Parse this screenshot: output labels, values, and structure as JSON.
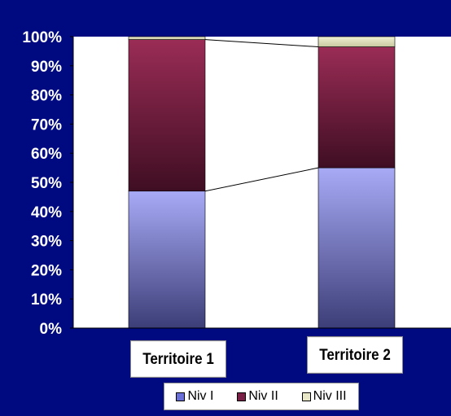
{
  "chart_data": {
    "type": "bar",
    "stacked": true,
    "percent": true,
    "categories": [
      "Territoire 1",
      "Territoire 2"
    ],
    "series": [
      {
        "name": "Niv I",
        "values": [
          47,
          55
        ],
        "color": "#6a6fd8"
      },
      {
        "name": "Niv II",
        "values": [
          52,
          41.5
        ],
        "color": "#7a1f45"
      },
      {
        "name": "Niv III",
        "values": [
          1,
          3.5
        ],
        "color": "#e8e8c8"
      }
    ],
    "yticks": [
      "0%",
      "10%",
      "20%",
      "30%",
      "40%",
      "50%",
      "60%",
      "70%",
      "80%",
      "90%",
      "100%"
    ],
    "ylim": [
      0,
      100
    ],
    "series_lines": true,
    "legend_position": "bottom",
    "background_color": "#000a80",
    "plot_color": "#ffffff"
  }
}
